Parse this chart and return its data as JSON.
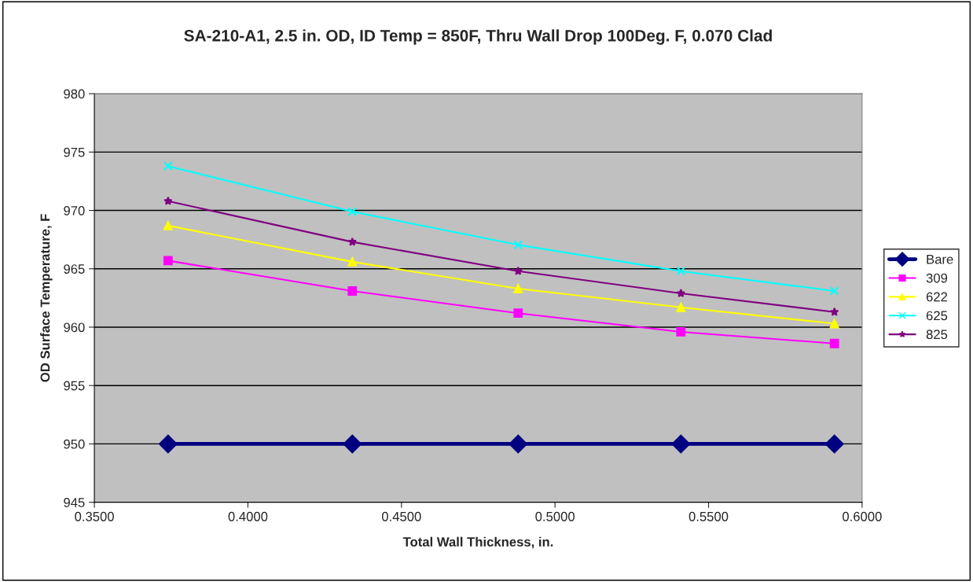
{
  "chart_data": {
    "type": "line",
    "title": "SA-210-A1, 2.5 in. OD, ID Temp = 850F, Thru Wall Drop 100Deg. F, 0.070 Clad",
    "xlabel": "Total Wall Thickness, in.",
    "ylabel": "OD Surface Temperature, F",
    "x": [
      0.374,
      0.434,
      0.488,
      0.541,
      0.591
    ],
    "series": [
      {
        "name": "Bare",
        "color": "#000080",
        "marker": "diamond",
        "values": [
          950,
          950,
          950,
          950,
          950
        ]
      },
      {
        "name": "309",
        "color": "#ff00ff",
        "marker": "square",
        "values": [
          965.7,
          963.1,
          961.2,
          959.6,
          958.6
        ]
      },
      {
        "name": "622",
        "color": "#ffff00",
        "marker": "triangle",
        "values": [
          968.7,
          965.6,
          963.3,
          961.7,
          960.3
        ]
      },
      {
        "name": "625",
        "color": "#00ffff",
        "marker": "cross",
        "values": [
          973.8,
          969.9,
          967.05,
          964.8,
          963.1
        ]
      },
      {
        "name": "825",
        "color": "#800080",
        "marker": "star",
        "values": [
          970.8,
          967.3,
          964.8,
          962.9,
          961.3
        ]
      }
    ],
    "xlim": [
      0.35,
      0.6
    ],
    "xticks": [
      {
        "value": 0.35,
        "label": "0.3500"
      },
      {
        "value": 0.4,
        "label": "0.4000"
      },
      {
        "value": 0.45,
        "label": "0.4500"
      },
      {
        "value": 0.5,
        "label": "0.5000"
      },
      {
        "value": 0.55,
        "label": "0.5500"
      },
      {
        "value": 0.6,
        "label": "0.6000"
      }
    ],
    "ylim": [
      945,
      980
    ],
    "yticks": [
      945,
      950,
      955,
      960,
      965,
      970,
      975,
      980
    ],
    "grid": "y",
    "legend": "right",
    "line_style": "solid"
  }
}
